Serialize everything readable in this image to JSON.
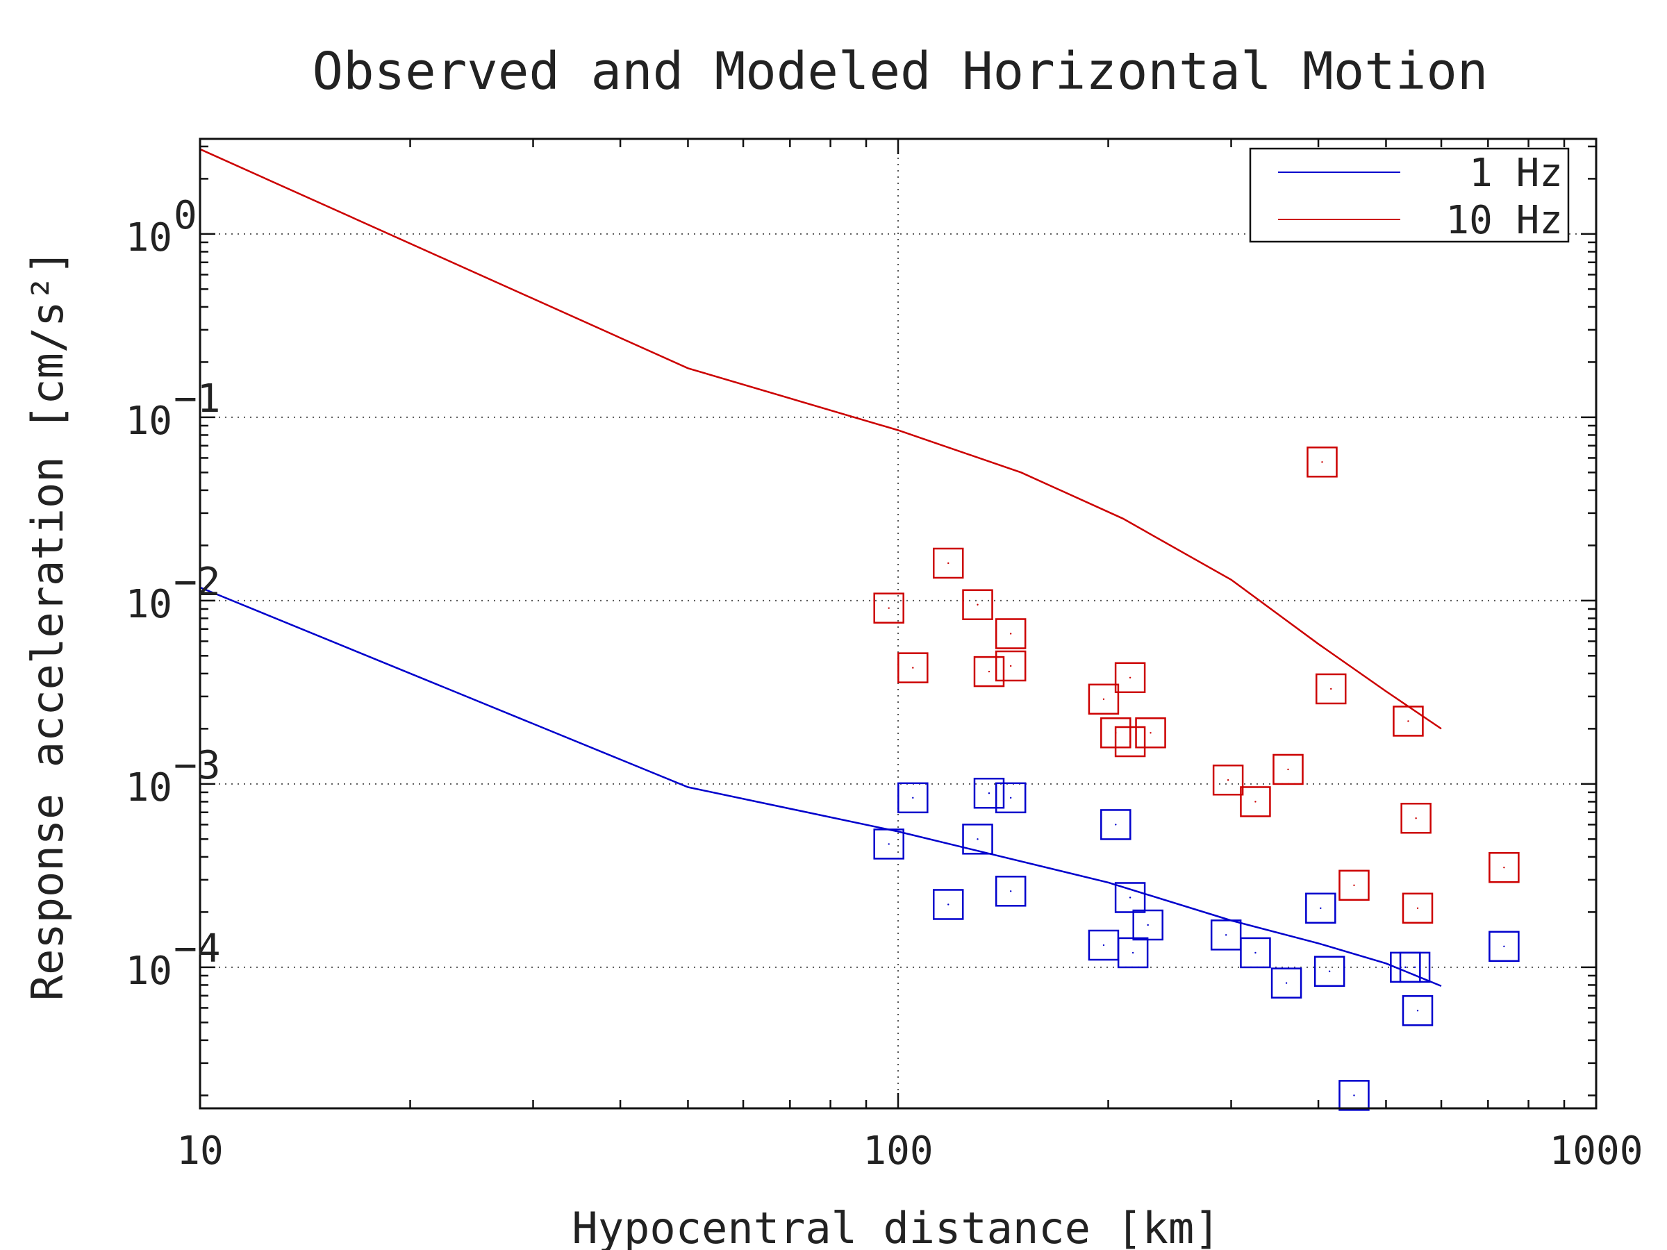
{
  "chart_data": {
    "type": "scatter",
    "title": "Observed and Modeled Horizontal Motion",
    "xlabel": "Hypocentral distance [km]",
    "ylabel": "Response acceleration [cm/s²]",
    "x_scale": "log",
    "y_scale": "log",
    "xlim": [
      10,
      1000
    ],
    "ylim": [
      1.7e-05,
      3.3
    ],
    "x_ticks": [
      {
        "value": 10,
        "label": "10"
      },
      {
        "value": 100,
        "label": "100"
      },
      {
        "value": 1000,
        "label": "1000"
      }
    ],
    "y_ticks": [
      {
        "value": 1,
        "base": "10",
        "exp": "0"
      },
      {
        "value": 0.1,
        "base": "10",
        "exp": "−1"
      },
      {
        "value": 0.01,
        "base": "10",
        "exp": "−2"
      },
      {
        "value": 0.001,
        "base": "10",
        "exp": "−3"
      },
      {
        "value": 0.0001,
        "base": "10",
        "exp": "−4"
      }
    ],
    "grid": true,
    "legend_position": "top-right",
    "series": [
      {
        "name": "1 Hz",
        "color": "#0000cc",
        "line": [
          [
            10,
            0.0118
          ],
          [
            50,
            0.00096
          ],
          [
            100,
            0.00055
          ],
          [
            200,
            0.00029
          ],
          [
            300,
            0.00018
          ],
          [
            400,
            0.000135
          ],
          [
            500,
            0.000105
          ],
          [
            600,
            7.9e-05
          ]
        ],
        "points": [
          [
            97,
            0.00047
          ],
          [
            105,
            0.00084
          ],
          [
            118,
            0.00022
          ],
          [
            130,
            0.0005
          ],
          [
            135,
            0.00089
          ],
          [
            145,
            0.00084
          ],
          [
            145,
            0.00026
          ],
          [
            197,
            0.000132
          ],
          [
            205,
            0.0006
          ],
          [
            215,
            0.00024
          ],
          [
            217,
            0.00012
          ],
          [
            228,
            0.00017
          ],
          [
            295,
            0.00015
          ],
          [
            325,
            0.00012
          ],
          [
            360,
            8.2e-05
          ],
          [
            403,
            0.00021
          ],
          [
            415,
            9.5e-05
          ],
          [
            450,
            2e-05
          ],
          [
            533,
            0.0001
          ],
          [
            550,
            0.0001
          ],
          [
            555,
            5.8e-05
          ],
          [
            738,
            0.00013
          ]
        ]
      },
      {
        "name": "10 Hz",
        "color": "#cc0000",
        "line": [
          [
            10,
            2.9
          ],
          [
            50,
            0.185
          ],
          [
            100,
            0.085
          ],
          [
            150,
            0.05
          ],
          [
            210,
            0.028
          ],
          [
            300,
            0.013
          ],
          [
            400,
            0.0058
          ],
          [
            500,
            0.0032
          ],
          [
            600,
            0.002
          ]
        ],
        "points": [
          [
            97,
            0.0091
          ],
          [
            105,
            0.0043
          ],
          [
            118,
            0.016
          ],
          [
            130,
            0.0095
          ],
          [
            135,
            0.0041
          ],
          [
            145,
            0.0066
          ],
          [
            145,
            0.0044
          ],
          [
            197,
            0.0029
          ],
          [
            205,
            0.0019
          ],
          [
            215,
            0.0038
          ],
          [
            215,
            0.0017
          ],
          [
            230,
            0.0019
          ],
          [
            297,
            0.00105
          ],
          [
            325,
            0.0008
          ],
          [
            362,
            0.0012
          ],
          [
            405,
            0.057
          ],
          [
            417,
            0.0033
          ],
          [
            450,
            0.00028
          ],
          [
            538,
            0.0022
          ],
          [
            552,
            0.00065
          ],
          [
            555,
            0.00021
          ],
          [
            738,
            0.00035
          ]
        ]
      }
    ]
  }
}
